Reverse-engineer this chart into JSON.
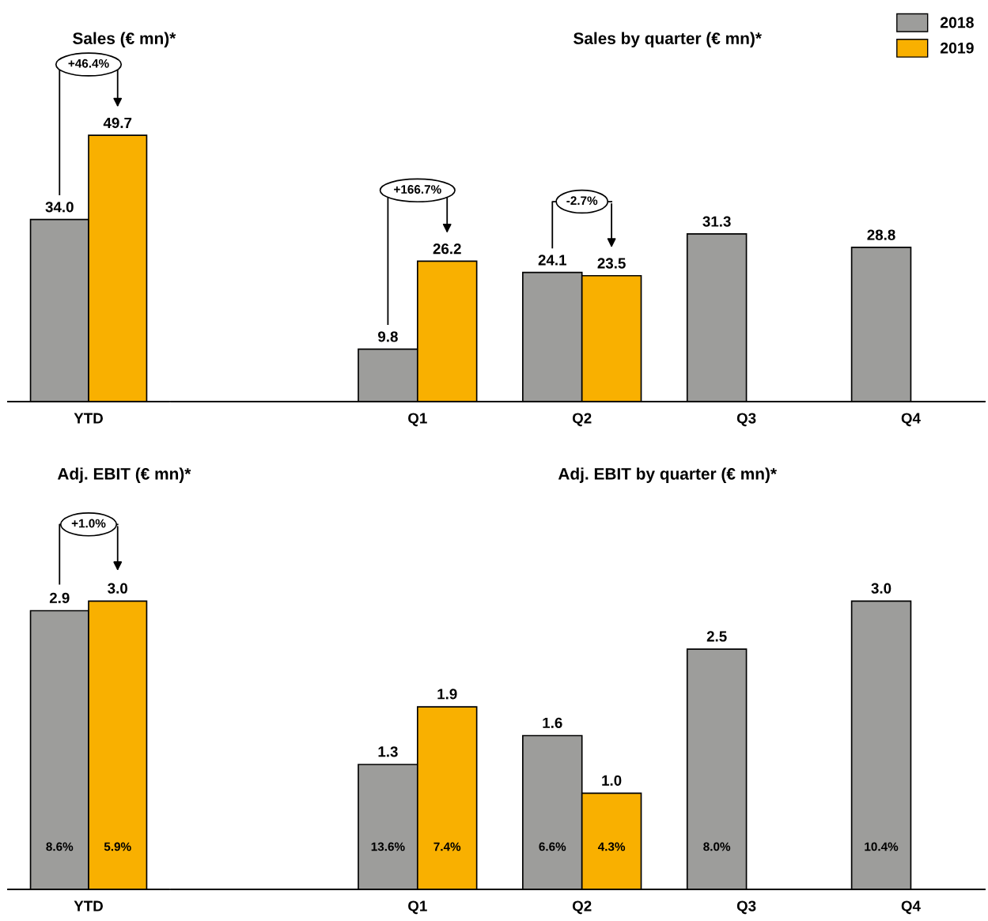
{
  "chart_data": [
    {
      "type": "bar",
      "title": "Sales (€ mn)*",
      "categories": [
        "YTD"
      ],
      "series": [
        {
          "color": "#9d9d9b",
          "values": [
            34.0
          ],
          "value_labels": [
            "34.0"
          ]
        },
        {
          "color": "#f9b000",
          "values": [
            49.7
          ],
          "value_labels": [
            "49.7"
          ]
        }
      ],
      "annotations": [
        "+46.4%"
      ]
    },
    {
      "type": "bar",
      "title": "Sales by quarter (€ mn)*",
      "categories": [
        "Q1",
        "Q2",
        "Q3",
        "Q4"
      ],
      "legend": "top right",
      "series": [
        {
          "name": "2018",
          "color": "#9d9d9b",
          "values": [
            9.8,
            24.1,
            31.3,
            28.8
          ],
          "value_labels": [
            "9.8",
            "24.1",
            "31.3",
            "28.8"
          ]
        },
        {
          "name": "2019",
          "color": "#f9b000",
          "values": [
            26.2,
            23.5,
            null,
            null
          ],
          "value_labels": [
            "26.2",
            "23.5",
            null,
            null
          ]
        }
      ],
      "annotations": [
        "+166.7%",
        "-2.7%"
      ]
    },
    {
      "type": "bar",
      "title": "Adj. EBIT (€ mn)*",
      "categories": [
        "YTD"
      ],
      "series": [
        {
          "color": "#9d9d9b",
          "values": [
            2.9
          ],
          "value_labels": [
            "2.9"
          ]
        },
        {
          "color": "#f9b000",
          "values": [
            3.0
          ],
          "value_labels": [
            "3.0"
          ]
        }
      ],
      "annotations": [
        "+1.0%",
        "8.6%",
        "5.9%"
      ]
    },
    {
      "type": "bar",
      "title": "Adj. EBIT by quarter (€ mn)*",
      "categories": [
        "Q1",
        "Q2",
        "Q3",
        "Q4"
      ],
      "series": [
        {
          "color": "#9d9d9b",
          "values": [
            1.3,
            1.6,
            2.5,
            3.0
          ],
          "value_labels": [
            "1.3",
            "1.6",
            "2.5",
            "3.0"
          ]
        },
        {
          "color": "#f9b000",
          "values": [
            1.9,
            1.0,
            null,
            null
          ],
          "value_labels": [
            "1.9",
            "1.0",
            null,
            null
          ]
        }
      ],
      "annotations": [
        "13.6%",
        "7.4%",
        "6.6%",
        "4.3%",
        "8.0%",
        "10.4%"
      ]
    }
  ]
}
